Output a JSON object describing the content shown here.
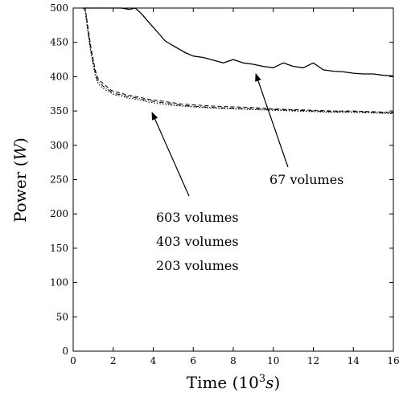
{
  "chart_data": {
    "type": "line",
    "title": "",
    "xlabel": "Time (10",
    "xlabel_sup": "3",
    "xlabel_unit": "s",
    "xlabel_close": ")",
    "ylabel": "Power (",
    "ylabel_unit": "W",
    "ylabel_close": ")",
    "xlim": [
      0,
      16
    ],
    "ylim": [
      0,
      500
    ],
    "x_ticks": [
      0,
      2,
      4,
      6,
      8,
      10,
      12,
      14,
      16
    ],
    "x_tick_labels": [
      "0",
      "2",
      "4",
      "6",
      "8",
      "10",
      "12",
      "14",
      "16"
    ],
    "y_ticks": [
      0,
      50,
      100,
      150,
      200,
      250,
      300,
      350,
      400,
      450,
      500
    ],
    "y_tick_labels": [
      "0",
      "50",
      "100",
      "150",
      "200",
      "250",
      "300",
      "350",
      "400",
      "450",
      "500"
    ],
    "grid": false,
    "series": [
      {
        "name": "67 volumes",
        "style": "solid",
        "color": "#000000",
        "x": [
          0.5,
          0.7,
          1.0,
          1.3,
          1.6,
          2.0,
          2.4,
          2.8,
          3.1,
          3.4,
          3.7,
          4.0,
          4.3,
          4.6,
          5.0,
          5.3,
          5.6,
          6.0,
          6.5,
          7.0,
          7.5,
          8.0,
          8.5,
          9.0,
          9.5,
          10.0,
          10.5,
          11.0,
          11.5,
          12.0,
          12.5,
          13.0,
          13.5,
          14.0,
          14.5,
          15.0,
          15.5,
          16.0
        ],
        "y": [
          500,
          500,
          500,
          500,
          500,
          500,
          500,
          498,
          500,
          492,
          482,
          472,
          462,
          452,
          445,
          440,
          435,
          430,
          428,
          424,
          420,
          425,
          420,
          418,
          415,
          413,
          420,
          415,
          413,
          420,
          410,
          408,
          407,
          405,
          404,
          404,
          402,
          401
        ]
      },
      {
        "name": "603 volumes",
        "style": "dashed",
        "color": "#000000",
        "x": [
          0.5,
          0.6,
          0.7,
          0.8,
          0.9,
          1.0,
          1.1,
          1.2,
          1.3,
          1.5,
          1.7,
          1.9,
          2.1,
          2.4,
          2.7,
          3.0,
          3.3,
          3.6,
          4.0,
          4.5,
          5.0,
          5.5,
          6.0,
          6.5,
          7.0,
          8.0,
          9.0,
          10.0,
          11.0,
          12.0,
          13.0,
          14.0,
          15.0,
          16.0
        ],
        "y": [
          500,
          500,
          480,
          460,
          440,
          425,
          410,
          400,
          395,
          390,
          385,
          380,
          378,
          376,
          373,
          372,
          370,
          368,
          366,
          364,
          362,
          360,
          359,
          358,
          357,
          356,
          355,
          353,
          352,
          351,
          350,
          350,
          349,
          348
        ]
      },
      {
        "name": "403 volumes",
        "style": "dashdot",
        "color": "#000000",
        "x": [
          0.5,
          0.6,
          0.7,
          0.8,
          0.9,
          1.0,
          1.1,
          1.2,
          1.3,
          1.5,
          1.7,
          1.9,
          2.1,
          2.4,
          2.7,
          3.0,
          3.3,
          3.6,
          4.0,
          4.5,
          5.0,
          5.5,
          6.0,
          6.5,
          7.0,
          8.0,
          9.0,
          10.0,
          11.0,
          12.0,
          13.0,
          14.0,
          15.0,
          16.0
        ],
        "y": [
          500,
          498,
          476,
          455,
          436,
          420,
          406,
          396,
          392,
          386,
          382,
          378,
          375,
          374,
          371,
          370,
          368,
          366,
          364,
          362,
          360,
          358,
          357,
          356,
          355,
          354,
          353,
          352,
          351,
          350,
          349,
          349,
          348,
          347
        ]
      },
      {
        "name": "203 volumes",
        "style": "dotted",
        "color": "#000000",
        "x": [
          0.5,
          0.6,
          0.7,
          0.8,
          0.9,
          1.0,
          1.1,
          1.2,
          1.3,
          1.5,
          1.7,
          1.9,
          2.1,
          2.4,
          2.7,
          3.0,
          3.3,
          3.6,
          4.0,
          4.5,
          5.0,
          5.5,
          6.0,
          6.5,
          7.0,
          8.0,
          9.0,
          10.0,
          11.0,
          12.0,
          13.0,
          14.0,
          15.0,
          16.0
        ],
        "y": [
          500,
          495,
          472,
          450,
          432,
          416,
          402,
          393,
          388,
          383,
          379,
          376,
          373,
          372,
          369,
          368,
          366,
          364,
          362,
          360,
          358,
          357,
          356,
          355,
          354,
          353,
          352,
          351,
          350,
          349,
          348,
          348,
          347,
          346
        ]
      }
    ],
    "annotations": [
      {
        "text": "67 volumes",
        "points_to": [
          9.3,
          416
        ]
      },
      {
        "text": "603 volumes",
        "points_to": [
          3.9,
          356
        ]
      },
      {
        "text": "403 volumes"
      },
      {
        "text": "203 volumes"
      }
    ]
  }
}
